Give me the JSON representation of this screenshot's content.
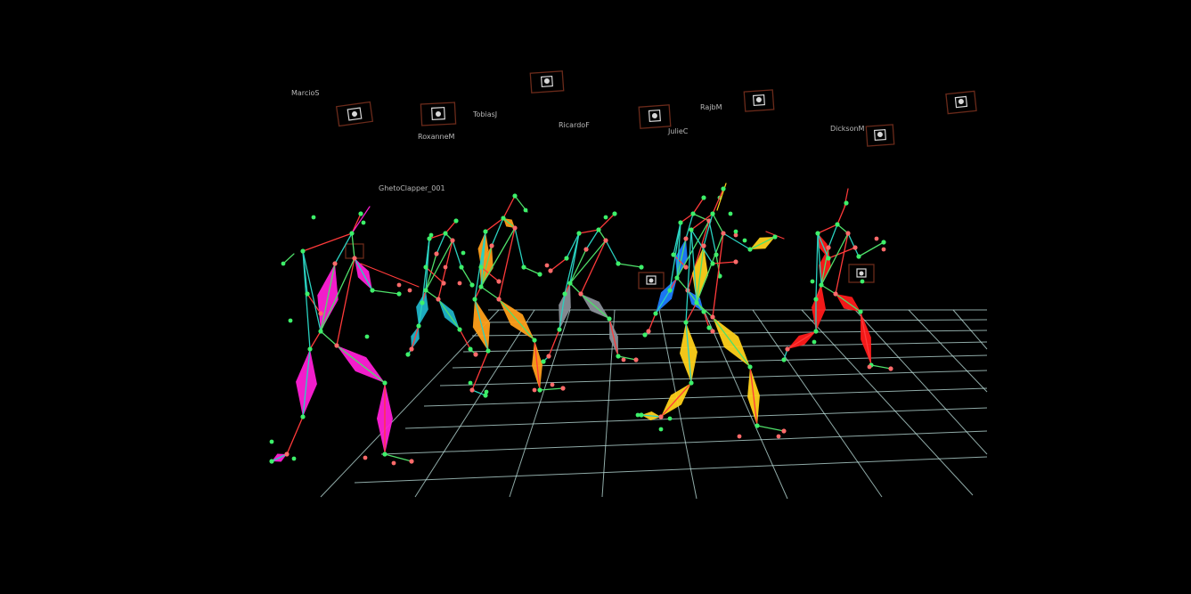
{
  "scene": {
    "background_color": "#000000",
    "grid_color": "#bfe3df",
    "camera_labels": [
      {
        "label": "MarcioS"
      },
      {
        "label": "RoxanneM"
      },
      {
        "label": "TobiasJ"
      },
      {
        "label": "RicardoF"
      },
      {
        "label": "JulieC"
      },
      {
        "label": "RajbM"
      },
      {
        "label": "DicksonM"
      }
    ],
    "object_label": "GhetoClapper_001",
    "performers": [
      {
        "name": "performer-magenta",
        "color": "#ff1fd6"
      },
      {
        "name": "performer-teal",
        "color": "#1fb3c8"
      },
      {
        "name": "performer-orange",
        "color": "#ff9f1a"
      },
      {
        "name": "performer-gray",
        "color": "#8a8f98"
      },
      {
        "name": "performer-blue",
        "color": "#1e7cff"
      },
      {
        "name": "performer-yellow",
        "color": "#ffd11a"
      },
      {
        "name": "performer-red",
        "color": "#ff1a1a"
      }
    ],
    "marker_colors": {
      "green": "#3df06a",
      "salmon": "#ff6a6a",
      "pink": "#ff8fb0"
    }
  }
}
